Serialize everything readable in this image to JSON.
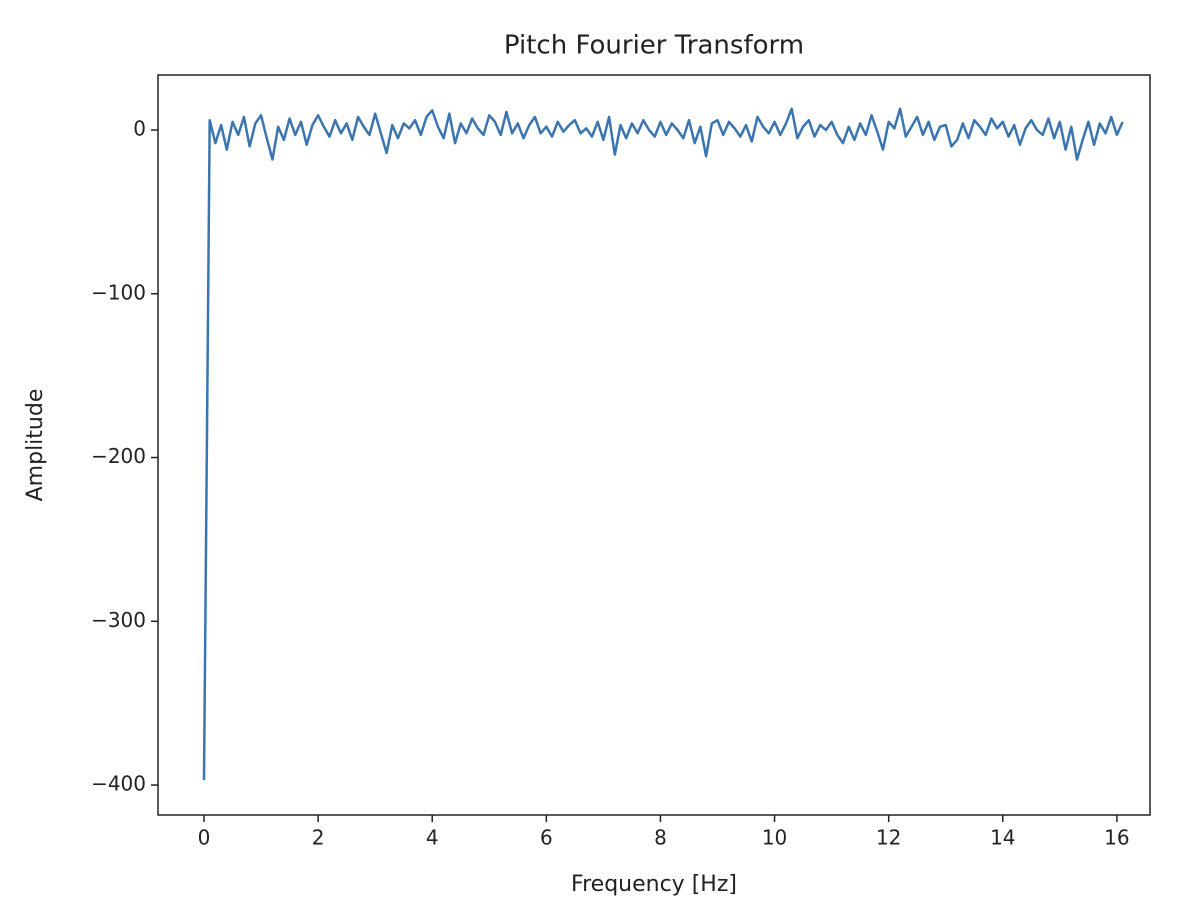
{
  "chart_data": {
    "type": "line",
    "title": "Pitch Fourier Transform",
    "x_label": "Frequency [Hz]",
    "y_label": "Amplitude",
    "x": [
      0,
      0.1,
      0.2,
      0.3,
      0.4,
      0.5,
      0.6,
      0.7,
      0.8,
      0.9,
      1,
      1.1,
      1.2,
      1.3,
      1.4,
      1.5,
      1.6,
      1.7,
      1.8,
      1.9,
      2,
      2.1,
      2.2,
      2.3,
      2.4,
      2.5,
      2.6,
      2.7,
      2.8,
      2.9,
      3,
      3.1,
      3.2,
      3.3,
      3.4,
      3.5,
      3.6,
      3.7,
      3.8,
      3.9,
      4,
      4.1,
      4.2,
      4.3,
      4.4,
      4.5,
      4.6,
      4.7,
      4.8,
      4.9,
      5,
      5.1,
      5.2,
      5.3,
      5.4,
      5.5,
      5.6,
      5.7,
      5.8,
      5.9,
      6,
      6.1,
      6.2,
      6.3,
      6.4,
      6.5,
      6.6,
      6.7,
      6.8,
      6.9,
      7,
      7.1,
      7.2,
      7.3,
      7.4,
      7.5,
      7.6,
      7.7,
      7.8,
      7.9,
      8,
      8.1,
      8.2,
      8.3,
      8.4,
      8.5,
      8.6,
      8.7,
      8.8,
      8.9,
      9,
      9.1,
      9.2,
      9.3,
      9.4,
      9.5,
      9.6,
      9.7,
      9.8,
      9.9,
      10,
      10.1,
      10.2,
      10.3,
      10.4,
      10.5,
      10.6,
      10.7,
      10.8,
      10.9,
      11,
      11.1,
      11.2,
      11.3,
      11.4,
      11.5,
      11.6,
      11.7,
      11.8,
      11.9,
      12,
      12.1,
      12.2,
      12.3,
      12.4,
      12.5,
      12.6,
      12.7,
      12.8,
      12.9,
      13,
      13.1,
      13.2,
      13.3,
      13.4,
      13.5,
      13.6,
      13.7,
      13.8,
      13.9,
      14,
      14.1,
      14.2,
      14.3,
      14.4,
      14.5,
      14.6,
      14.7,
      14.8,
      14.9,
      15,
      15.1,
      15.2,
      15.3,
      15.4,
      15.5,
      15.6,
      15.7,
      15.8,
      15.9,
      16,
      16.1
    ],
    "series": [
      {
        "color": "#3a75b0",
        "values": [
          -397,
          6,
          -8,
          3,
          -12,
          5,
          -3,
          8,
          -10,
          4,
          9,
          -5,
          -18,
          2,
          -6,
          7,
          -3,
          5,
          -9,
          3,
          9,
          2,
          -4,
          6,
          -2,
          4,
          -6,
          8,
          2,
          -3,
          10,
          -2,
          -14,
          3,
          -5,
          4,
          1,
          6,
          -3,
          8,
          12,
          2,
          -5,
          10,
          -8,
          4,
          -2,
          7,
          1,
          -3,
          9,
          5,
          -3,
          11,
          -2,
          4,
          -5,
          3,
          8,
          -2,
          2,
          -4,
          5,
          -1,
          3,
          6,
          -2,
          1,
          -4,
          5,
          -6,
          8,
          -15,
          3,
          -5,
          4,
          -2,
          6,
          0,
          -4,
          5,
          -3,
          4,
          0,
          -5,
          6,
          -8,
          2,
          -16,
          4,
          6,
          -3,
          5,
          1,
          -4,
          3,
          -7,
          8,
          2,
          -2,
          5,
          -3,
          4,
          13,
          -5,
          2,
          6,
          -4,
          3,
          0,
          5,
          -3,
          -8,
          2,
          -6,
          4,
          -3,
          9,
          -1,
          -12,
          5,
          1,
          13,
          -4,
          2,
          8,
          -3,
          5,
          -6,
          2,
          3,
          -10,
          -6,
          4,
          -5,
          6,
          2,
          -3,
          7,
          1,
          5,
          -4,
          3,
          -9,
          1,
          6,
          0,
          -3,
          7,
          -5,
          5,
          -12,
          2,
          -18,
          -6,
          5,
          -9,
          4,
          -2,
          8,
          -3,
          5
        ]
      }
    ],
    "xlim": [
      -0.806,
      16.58
    ],
    "ylim": [
      -418.3,
      33.6
    ],
    "xticks": [
      0,
      2,
      4,
      6,
      8,
      10,
      12,
      14,
      16
    ],
    "yticks": [
      0,
      {
        "value": -100,
        "label": "−100"
      },
      {
        "value": -200,
        "label": "−200"
      },
      {
        "value": -300,
        "label": "−300"
      },
      {
        "value": -400,
        "label": "−400"
      }
    ]
  }
}
